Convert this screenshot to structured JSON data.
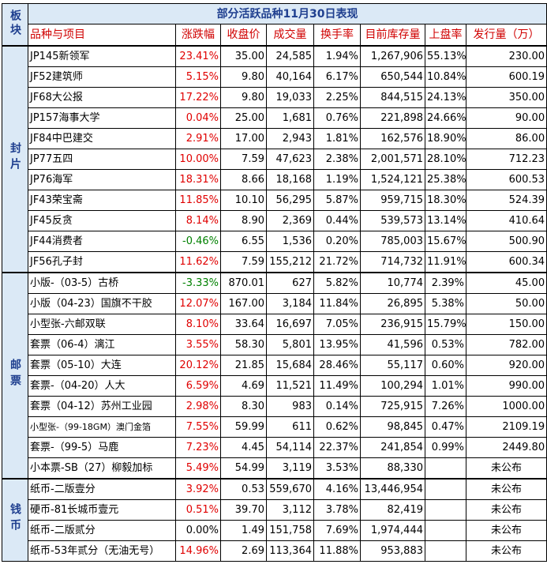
{
  "header": {
    "section_col": "板块",
    "title": "部分活跃品种11月30日表现",
    "columns": [
      "品种与项目",
      "涨跌幅",
      "收盘价",
      "成交量",
      "换手率",
      "目前库存量",
      "上盘率",
      "发行量（万）"
    ]
  },
  "sections": [
    {
      "label": "封片",
      "rows": [
        {
          "name": "JP145新领军",
          "change": "23.41%",
          "dir": "up",
          "close": "35.00",
          "volume": "24,585",
          "turnover": "1.94%",
          "stock": "1,267,906",
          "ratio": "55.13%",
          "issue": "230.00"
        },
        {
          "name": "JF52建筑师",
          "change": "5.15%",
          "dir": "up",
          "close": "9.80",
          "volume": "40,164",
          "turnover": "6.17%",
          "stock": "650,544",
          "ratio": "10.84%",
          "issue": "600.19"
        },
        {
          "name": "JF68大公报",
          "change": "17.22%",
          "dir": "up",
          "close": "9.80",
          "volume": "19,033",
          "turnover": "2.25%",
          "stock": "844,515",
          "ratio": "24.13%",
          "issue": "350.00"
        },
        {
          "name": "JP157海事大学",
          "change": "0.04%",
          "dir": "up",
          "close": "25.00",
          "volume": "1,681",
          "turnover": "0.76%",
          "stock": "221,898",
          "ratio": "24.66%",
          "issue": "90.00"
        },
        {
          "name": "JF84中巴建交",
          "change": "2.91%",
          "dir": "up",
          "close": "17.00",
          "volume": "2,943",
          "turnover": "1.81%",
          "stock": "162,576",
          "ratio": "18.90%",
          "issue": "86.00"
        },
        {
          "name": "JP77五四",
          "change": "10.00%",
          "dir": "up",
          "close": "7.59",
          "volume": "47,623",
          "turnover": "2.38%",
          "stock": "2,001,571",
          "ratio": "28.10%",
          "issue": "712.23"
        },
        {
          "name": "JP76海军",
          "change": "18.31%",
          "dir": "up",
          "close": "8.66",
          "volume": "18,168",
          "turnover": "1.19%",
          "stock": "1,524,121",
          "ratio": "25.38%",
          "issue": "600.53"
        },
        {
          "name": "JF43荣宝斋",
          "change": "11.85%",
          "dir": "up",
          "close": "10.10",
          "volume": "56,295",
          "turnover": "5.87%",
          "stock": "959,715",
          "ratio": "18.30%",
          "issue": "524.39"
        },
        {
          "name": "JF45反贪",
          "change": "8.14%",
          "dir": "up",
          "close": "8.90",
          "volume": "2,369",
          "turnover": "0.44%",
          "stock": "539,573",
          "ratio": "13.14%",
          "issue": "410.64"
        },
        {
          "name": "JF44消费者",
          "change": "-0.46%",
          "dir": "down",
          "close": "6.55",
          "volume": "1,536",
          "turnover": "0.20%",
          "stock": "785,003",
          "ratio": "15.67%",
          "issue": "500.90"
        },
        {
          "name": "JF56孔子封",
          "change": "11.62%",
          "dir": "up",
          "close": "7.59",
          "volume": "155,212",
          "turnover": "21.72%",
          "stock": "714,732",
          "ratio": "11.91%",
          "issue": "600.34"
        }
      ]
    },
    {
      "label": "邮票",
      "rows": [
        {
          "name": "小版-（03-5）古桥",
          "change": "-3.33%",
          "dir": "down",
          "close": "870.01",
          "volume": "627",
          "turnover": "5.82%",
          "stock": "10,774",
          "ratio": "2.39%",
          "issue": "45.00"
        },
        {
          "name": "小版（04-23）国旗不干胶",
          "change": "12.07%",
          "dir": "up",
          "close": "167.00",
          "volume": "3,184",
          "turnover": "11.84%",
          "stock": "26,895",
          "ratio": "5.38%",
          "issue": "50.00"
        },
        {
          "name": "小型张-六邮双联",
          "change": "8.10%",
          "dir": "up",
          "close": "33.64",
          "volume": "16,697",
          "turnover": "7.05%",
          "stock": "236,915",
          "ratio": "15.79%",
          "issue": "150.00"
        },
        {
          "name": "套票（06-4）漓江",
          "change": "3.55%",
          "dir": "up",
          "close": "58.30",
          "volume": "5,801",
          "turnover": "13.95%",
          "stock": "41,596",
          "ratio": "0.53%",
          "issue": "782.00"
        },
        {
          "name": "套票（05-10）大连",
          "change": "20.12%",
          "dir": "up",
          "close": "21.85",
          "volume": "15,684",
          "turnover": "28.46%",
          "stock": "55,117",
          "ratio": "0.60%",
          "issue": "920.00"
        },
        {
          "name": "套票-（04-20）人大",
          "change": "6.59%",
          "dir": "up",
          "close": "4.69",
          "volume": "11,521",
          "turnover": "11.49%",
          "stock": "100,294",
          "ratio": "1.01%",
          "issue": "990.00"
        },
        {
          "name": "套票（04-12）苏州工业园",
          "change": "2.98%",
          "dir": "up",
          "close": "8.30",
          "volume": "983",
          "turnover": "0.14%",
          "stock": "725,915",
          "ratio": "7.26%",
          "issue": "1000.00"
        },
        {
          "name": "小型张-（99-18GM）澳门金箔",
          "change": "7.55%",
          "dir": "up",
          "close": "59.99",
          "volume": "611",
          "turnover": "0.62%",
          "stock": "98,845",
          "ratio": "0.47%",
          "issue": "2109.19"
        },
        {
          "name": "套票-（99-5）马鹿",
          "change": "7.23%",
          "dir": "up",
          "close": "4.45",
          "volume": "54,114",
          "turnover": "22.37%",
          "stock": "241,854",
          "ratio": "0.99%",
          "issue": "2449.80"
        },
        {
          "name": "小本票-SB（27）柳毅加标",
          "change": "5.49%",
          "dir": "up",
          "close": "54.99",
          "volume": "3,119",
          "turnover": "3.53%",
          "stock": "88,330",
          "ratio": "",
          "issue": "未公布"
        }
      ]
    },
    {
      "label": "钱币",
      "rows": [
        {
          "name": "纸币-二版壹分",
          "change": "3.92%",
          "dir": "up",
          "close": "0.53",
          "volume": "559,670",
          "turnover": "4.16%",
          "stock": "13,446,954",
          "ratio": "",
          "issue": "未公布"
        },
        {
          "name": "硬币-81长城币壹元",
          "change": "0.51%",
          "dir": "up",
          "close": "39.70",
          "volume": "3,112",
          "turnover": "3.78%",
          "stock": "82,419",
          "ratio": "",
          "issue": "未公布"
        },
        {
          "name": "纸币-二版贰分",
          "change": "0.00%",
          "dir": "flat",
          "close": "1.49",
          "volume": "151,758",
          "turnover": "7.69%",
          "stock": "1,974,444",
          "ratio": "",
          "issue": "未公布"
        },
        {
          "name": "纸币-53年贰分（无油无号）",
          "change": "14.96%",
          "dir": "up",
          "close": "2.69",
          "volume": "113,364",
          "turnover": "11.88%",
          "stock": "953,883",
          "ratio": "",
          "issue": "未公布"
        }
      ]
    }
  ]
}
